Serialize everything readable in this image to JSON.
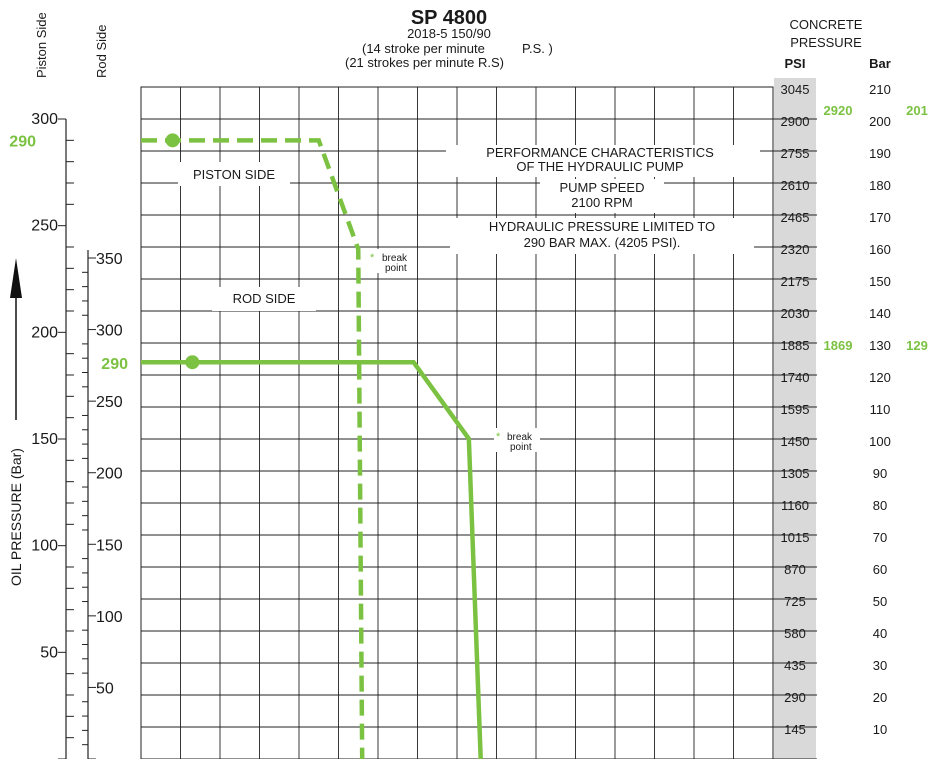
{
  "header": {
    "title": "SP 4800",
    "subtitle": "2018-5 150/90",
    "note_ps": "(14 stroke per minute",
    "note_ps_tag": "P.S. )",
    "note_rs": "(21 strokes per minute R.S)"
  },
  "axes": {
    "piston_side_label": "Piston Side",
    "rod_side_label": "Rod Side",
    "oil_pressure_label": "OIL PRESSURE (Bar)",
    "concrete_pressure_label": [
      "CONCRETE",
      "PRESSURE"
    ],
    "psi_label": "PSI",
    "bar_label": "Bar"
  },
  "annotations": {
    "perf": [
      "PERFORMANCE CHARACTERISTICS",
      "OF THE HYDRAULIC PUMP"
    ],
    "speed": [
      "PUMP SPEED",
      "2100 RPM"
    ],
    "limit": [
      "HYDRAULIC PRESSURE LIMITED TO",
      "290 BAR MAX. (4205 PSI)."
    ],
    "piston_side": "PISTON SIDE",
    "rod_side": "ROD SIDE",
    "break_point": [
      "break",
      "point"
    ],
    "star": "*"
  },
  "chart_data": {
    "type": "line",
    "title": "SP 4800",
    "subtitle": "2018-5 150/90",
    "ylabel": "OIL PRESSURE (Bar)",
    "grid": true,
    "piston_axis": {
      "label": "Piston Side",
      "ticks": [
        "300",
        "250",
        "200",
        "150",
        "100",
        "50"
      ],
      "ylim": [
        0,
        300
      ]
    },
    "rod_axis": {
      "label": "Rod Side",
      "ticks": [
        "350",
        "300",
        "250",
        "200",
        "150",
        "100",
        "50"
      ],
      "ylim": [
        0,
        350
      ]
    },
    "concrete_scale": {
      "psi": [
        "3045",
        "2900",
        "2755",
        "2610",
        "2465",
        "2320",
        "2175",
        "2030",
        "1885",
        "1740",
        "1595",
        "1450",
        "1305",
        "1160",
        "1015",
        "870",
        "725",
        "580",
        "435",
        "290",
        "145"
      ],
      "bar": [
        "210",
        "200",
        "190",
        "180",
        "170",
        "160",
        "150",
        "140",
        "130",
        "120",
        "110",
        "100",
        "90",
        "80",
        "70",
        "60",
        "50",
        "40",
        "30",
        "20",
        "10"
      ]
    },
    "highlights": {
      "piston": {
        "left": "290",
        "psi": "2920",
        "bar": "201"
      },
      "rod": {
        "left": "290",
        "psi": "1869",
        "bar": "129"
      }
    },
    "series": [
      {
        "name": "PISTON SIDE",
        "style": "dashed",
        "color": "#7cc242",
        "points": [
          [
            0,
            290
          ],
          [
            4.5,
            290
          ],
          [
            5.5,
            239
          ],
          [
            5.6,
            0
          ]
        ],
        "marker_at": 0.8,
        "break_point": [
          5.6,
          239
        ]
      },
      {
        "name": "ROD SIDE",
        "style": "solid",
        "color": "#7cc242",
        "points": [
          [
            0,
            290
          ],
          [
            6.9,
            290
          ],
          [
            8.3,
            234
          ],
          [
            8.6,
            0
          ]
        ],
        "marker_at": 1.3,
        "break_point": [
          8.3,
          234
        ]
      }
    ]
  },
  "colors": {
    "accent": "#7cc242",
    "scale_band": "#d9d9d9",
    "grid": "#222222"
  }
}
